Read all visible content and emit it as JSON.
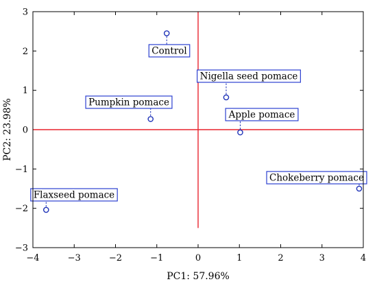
{
  "colors": {
    "zero_lines": "#e8232d",
    "points": "#1f33b8",
    "label_border": "#2b3fd0",
    "label_fill": "#ffffff",
    "frame": "#000000"
  },
  "chart_data": {
    "type": "scatter",
    "title": "",
    "xlabel": "PC1: 57.96%",
    "ylabel": "PC2: 23.98%",
    "xlim": [
      -4,
      4
    ],
    "ylim": [
      -3,
      3
    ],
    "x_ticks": [
      -4,
      -3,
      -2,
      -1,
      0,
      1,
      2,
      3,
      4
    ],
    "y_ticks": [
      -3,
      -2,
      -1,
      0,
      1,
      2,
      3
    ],
    "x_tick_labels": [
      "−4",
      "−3",
      "−2",
      "−1",
      "0",
      "1",
      "2",
      "3",
      "4"
    ],
    "y_tick_labels": [
      "−3",
      "−2",
      "−1",
      "0",
      "1",
      "2",
      "3"
    ],
    "grid": false,
    "reference_lines": {
      "x": 0,
      "y": 0,
      "y_range_of_vertical_line": [
        -2.5,
        3
      ]
    },
    "points": [
      {
        "name": "Control",
        "x": -0.76,
        "y": 2.45
      },
      {
        "name": "Nigella seed pomace",
        "x": 0.68,
        "y": 0.82
      },
      {
        "name": "Pumpkin pomace",
        "x": -1.15,
        "y": 0.27
      },
      {
        "name": "Apple pomace",
        "x": 1.02,
        "y": -0.07
      },
      {
        "name": "Chokeberry pomace",
        "x": 3.9,
        "y": -1.5
      },
      {
        "name": "Flaxseed pomace",
        "x": -3.68,
        "y": -2.04
      }
    ]
  }
}
